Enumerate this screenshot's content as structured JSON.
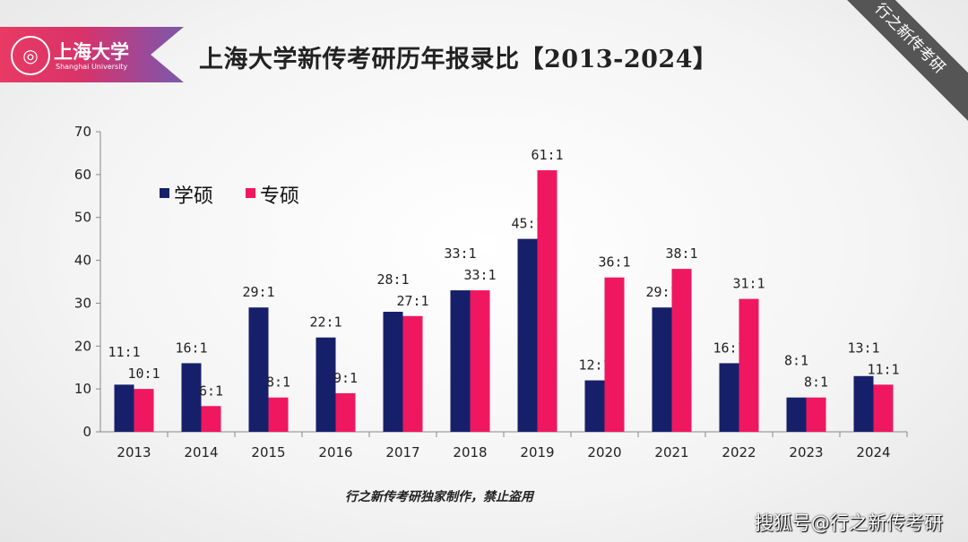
{
  "header": {
    "logo_cn": "上海大学",
    "logo_en": "Shanghai University",
    "title": "上海大学新传考研历年报录比【2013-2024】"
  },
  "corner_ribbon": "行之新传考研",
  "footer": {
    "note": "行之新传考研独家制作，禁止盗用",
    "source": "搜狐号@行之新传考研"
  },
  "colors": {
    "xueshuo": "#16206a",
    "zhuanshuo": "#ef1760"
  },
  "chart_data": {
    "type": "bar",
    "title": "上海大学新传考研历年报录比【2013-2024】",
    "categories": [
      "2013",
      "2014",
      "2015",
      "2016",
      "2017",
      "2018",
      "2019",
      "2020",
      "2021",
      "2022",
      "2023",
      "2024"
    ],
    "ylim": [
      0,
      70
    ],
    "yticks": [
      0,
      10,
      20,
      30,
      40,
      50,
      60,
      70
    ],
    "legend_position": "top-left",
    "grid": false,
    "series": [
      {
        "name": "学硕",
        "values": [
          11,
          16,
          29,
          22,
          28,
          33,
          45,
          12,
          29,
          16,
          8,
          13
        ],
        "labels": [
          "11:1",
          "16:1",
          "29:1",
          "22:1",
          "28:1",
          "33:1",
          "45:1",
          "12:1",
          "29:1",
          "16:1",
          "8:1",
          "13:1"
        ]
      },
      {
        "name": "专硕",
        "values": [
          10,
          6,
          8,
          9,
          27,
          33,
          61,
          36,
          38,
          31,
          8,
          11
        ],
        "labels": [
          "10:1",
          "6:1",
          "8:1",
          "9:1",
          "27:1",
          "33:1",
          "61:1",
          "36:1",
          "38:1",
          "31:1",
          "8:1",
          "11:1"
        ]
      }
    ]
  }
}
